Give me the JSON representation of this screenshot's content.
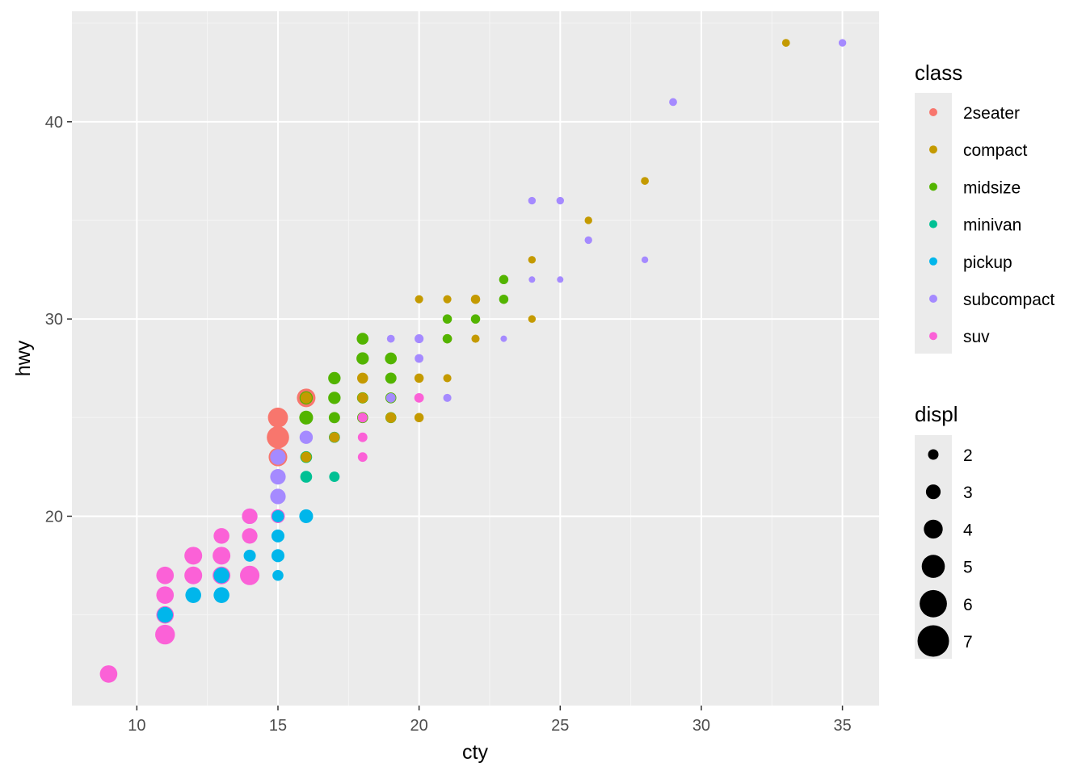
{
  "chart_data": {
    "type": "scatter",
    "title": "",
    "xlabel": "cty",
    "ylabel": "hwy",
    "xlim": [
      7.7,
      36.3
    ],
    "ylim": [
      10.4,
      45.6
    ],
    "x_ticks": [
      10,
      15,
      20,
      25,
      30,
      35
    ],
    "y_ticks": [
      20,
      30,
      40
    ],
    "grid": true,
    "legend_position": "right",
    "color_legend": {
      "title": "class",
      "entries": [
        {
          "name": "2seater",
          "color": "#F8766D"
        },
        {
          "name": "compact",
          "color": "#C49A00"
        },
        {
          "name": "midsize",
          "color": "#53B400"
        },
        {
          "name": "minivan",
          "color": "#00C094"
        },
        {
          "name": "pickup",
          "color": "#00B6EB"
        },
        {
          "name": "subcompact",
          "color": "#A58AFF"
        },
        {
          "name": "suv",
          "color": "#FB61D7"
        }
      ]
    },
    "size_legend": {
      "title": "displ",
      "values": [
        2,
        3,
        4,
        5,
        6,
        7
      ]
    },
    "series": [
      {
        "name": "2seater",
        "color": "#F8766D",
        "points": [
          {
            "x": 16,
            "y": 26,
            "size": 5.7
          },
          {
            "x": 15,
            "y": 25,
            "size": 6.2
          },
          {
            "x": 15,
            "y": 24,
            "size": 7.0
          },
          {
            "x": 15,
            "y": 23,
            "size": 5.7
          }
        ]
      },
      {
        "name": "compact",
        "color": "#C49A00",
        "points": [
          {
            "x": 33,
            "y": 44,
            "size": 1.9
          },
          {
            "x": 28,
            "y": 37,
            "size": 1.9
          },
          {
            "x": 26,
            "y": 35,
            "size": 1.8
          },
          {
            "x": 24,
            "y": 33,
            "size": 1.8
          },
          {
            "x": 24,
            "y": 30,
            "size": 1.8
          },
          {
            "x": 20,
            "y": 31,
            "size": 2.0
          },
          {
            "x": 21,
            "y": 31,
            "size": 2.0
          },
          {
            "x": 22,
            "y": 31,
            "size": 2.4
          },
          {
            "x": 21,
            "y": 29,
            "size": 2.4
          },
          {
            "x": 22,
            "y": 29,
            "size": 2.0
          },
          {
            "x": 21,
            "y": 27,
            "size": 2.0
          },
          {
            "x": 20,
            "y": 27,
            "size": 2.4
          },
          {
            "x": 20,
            "y": 25,
            "size": 2.4
          },
          {
            "x": 18,
            "y": 27,
            "size": 3.0
          },
          {
            "x": 19,
            "y": 25,
            "size": 2.8
          },
          {
            "x": 18,
            "y": 26,
            "size": 2.8
          },
          {
            "x": 17,
            "y": 24,
            "size": 2.8
          },
          {
            "x": 16,
            "y": 26,
            "size": 3.1
          },
          {
            "x": 16,
            "y": 23,
            "size": 2.8
          }
        ]
      },
      {
        "name": "midsize",
        "color": "#53B400",
        "points": [
          {
            "x": 23,
            "y": 32,
            "size": 2.4
          },
          {
            "x": 23,
            "y": 31,
            "size": 2.4
          },
          {
            "x": 21,
            "y": 30,
            "size": 2.4
          },
          {
            "x": 22,
            "y": 30,
            "size": 2.4
          },
          {
            "x": 21,
            "y": 29,
            "size": 2.4
          },
          {
            "x": 18,
            "y": 29,
            "size": 3.3
          },
          {
            "x": 18,
            "y": 28,
            "size": 3.5
          },
          {
            "x": 19,
            "y": 28,
            "size": 3.3
          },
          {
            "x": 17,
            "y": 27,
            "size": 3.5
          },
          {
            "x": 19,
            "y": 27,
            "size": 3.1
          },
          {
            "x": 16,
            "y": 26,
            "size": 3.8
          },
          {
            "x": 17,
            "y": 26,
            "size": 3.5
          },
          {
            "x": 18,
            "y": 26,
            "size": 3.1
          },
          {
            "x": 19,
            "y": 26,
            "size": 3.0
          },
          {
            "x": 16,
            "y": 25,
            "size": 4.0
          },
          {
            "x": 17,
            "y": 25,
            "size": 3.1
          },
          {
            "x": 18,
            "y": 25,
            "size": 3.0
          },
          {
            "x": 19,
            "y": 25,
            "size": 3.0
          },
          {
            "x": 17,
            "y": 24,
            "size": 3.0
          },
          {
            "x": 16,
            "y": 23,
            "size": 3.0
          }
        ]
      },
      {
        "name": "minivan",
        "color": "#00C094",
        "points": [
          {
            "x": 17,
            "y": 24,
            "size": 3.0
          },
          {
            "x": 16,
            "y": 23,
            "size": 3.3
          },
          {
            "x": 16,
            "y": 22,
            "size": 3.3
          },
          {
            "x": 17,
            "y": 22,
            "size": 2.8
          }
        ]
      },
      {
        "name": "pickup",
        "color": "#00B6EB",
        "points": [
          {
            "x": 16,
            "y": 20,
            "size": 4.0
          },
          {
            "x": 15,
            "y": 20,
            "size": 3.4
          },
          {
            "x": 15,
            "y": 19,
            "size": 3.7
          },
          {
            "x": 15,
            "y": 18,
            "size": 3.7
          },
          {
            "x": 14,
            "y": 18,
            "size": 3.4
          },
          {
            "x": 15,
            "y": 17,
            "size": 3.0
          },
          {
            "x": 13,
            "y": 17,
            "size": 4.7
          },
          {
            "x": 12,
            "y": 16,
            "size": 4.7
          },
          {
            "x": 13,
            "y": 16,
            "size": 4.7
          },
          {
            "x": 11,
            "y": 15,
            "size": 4.7
          }
        ]
      },
      {
        "name": "subcompact",
        "color": "#A58AFF",
        "points": [
          {
            "x": 35,
            "y": 44,
            "size": 1.8
          },
          {
            "x": 29,
            "y": 41,
            "size": 1.9
          },
          {
            "x": 24,
            "y": 36,
            "size": 1.8
          },
          {
            "x": 25,
            "y": 36,
            "size": 1.8
          },
          {
            "x": 26,
            "y": 34,
            "size": 1.8
          },
          {
            "x": 28,
            "y": 33,
            "size": 1.5
          },
          {
            "x": 24,
            "y": 32,
            "size": 1.4
          },
          {
            "x": 25,
            "y": 32,
            "size": 1.4
          },
          {
            "x": 23,
            "y": 29,
            "size": 1.4
          },
          {
            "x": 19,
            "y": 29,
            "size": 1.9
          },
          {
            "x": 20,
            "y": 29,
            "size": 2.3
          },
          {
            "x": 20,
            "y": 28,
            "size": 2.2
          },
          {
            "x": 21,
            "y": 26,
            "size": 2.0
          },
          {
            "x": 19,
            "y": 26,
            "size": 2.5
          },
          {
            "x": 18,
            "y": 25,
            "size": 2.5
          },
          {
            "x": 16,
            "y": 24,
            "size": 3.8
          },
          {
            "x": 15,
            "y": 23,
            "size": 4.6
          },
          {
            "x": 15,
            "y": 22,
            "size": 4.6
          },
          {
            "x": 15,
            "y": 21,
            "size": 4.6
          },
          {
            "x": 14,
            "y": 20,
            "size": 4.6
          }
        ]
      },
      {
        "name": "suv",
        "color": "#FB61D7",
        "points": [
          {
            "x": 20,
            "y": 26,
            "size": 2.5
          },
          {
            "x": 18,
            "y": 25,
            "size": 2.5
          },
          {
            "x": 18,
            "y": 24,
            "size": 2.5
          },
          {
            "x": 18,
            "y": 23,
            "size": 2.5
          },
          {
            "x": 15,
            "y": 20,
            "size": 4.0
          },
          {
            "x": 14,
            "y": 20,
            "size": 4.6
          },
          {
            "x": 13,
            "y": 19,
            "size": 4.7
          },
          {
            "x": 14,
            "y": 19,
            "size": 4.6
          },
          {
            "x": 12,
            "y": 18,
            "size": 5.4
          },
          {
            "x": 13,
            "y": 18,
            "size": 5.4
          },
          {
            "x": 12,
            "y": 17,
            "size": 5.4
          },
          {
            "x": 13,
            "y": 17,
            "size": 5.4
          },
          {
            "x": 14,
            "y": 17,
            "size": 6.0
          },
          {
            "x": 11,
            "y": 17,
            "size": 5.3
          },
          {
            "x": 11,
            "y": 16,
            "size": 5.3
          },
          {
            "x": 11,
            "y": 15,
            "size": 5.3
          },
          {
            "x": 11,
            "y": 14,
            "size": 6.1
          },
          {
            "x": 9,
            "y": 12,
            "size": 5.3
          }
        ]
      }
    ]
  }
}
